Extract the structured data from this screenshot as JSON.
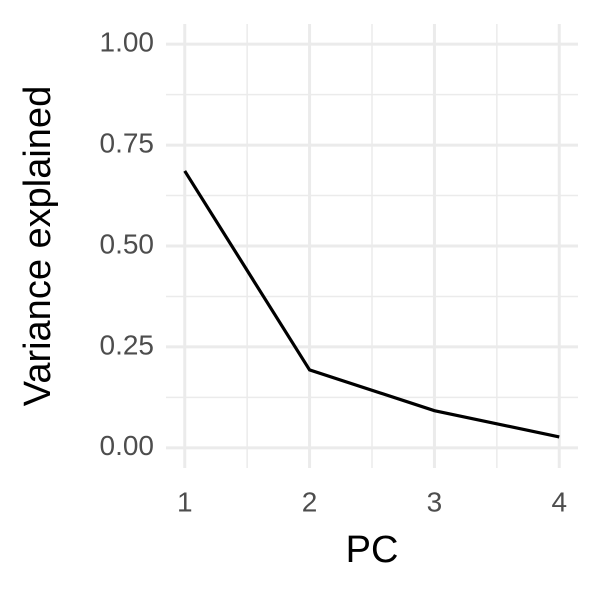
{
  "chart_data": {
    "type": "line",
    "x_label": "PC",
    "y_label": "Variance explained",
    "x": [
      1,
      2,
      3,
      4
    ],
    "series": [
      {
        "color": "#000000",
        "values": [
          0.686,
          0.193,
          0.092,
          0.027
        ]
      }
    ],
    "xlim": [
      0.85,
      4.15
    ],
    "ylim": [
      -0.05,
      1.05
    ],
    "xticks": [
      1,
      2,
      3,
      4
    ],
    "yticks": [
      {
        "value": 0,
        "label": "0.00"
      },
      {
        "value": 0.25,
        "label": "0.25"
      },
      {
        "value": 0.5,
        "label": "0.50"
      },
      {
        "value": 0.75,
        "label": "0.75"
      },
      {
        "value": 1,
        "label": "1.00"
      }
    ],
    "grid": true,
    "minor_grid": true
  }
}
